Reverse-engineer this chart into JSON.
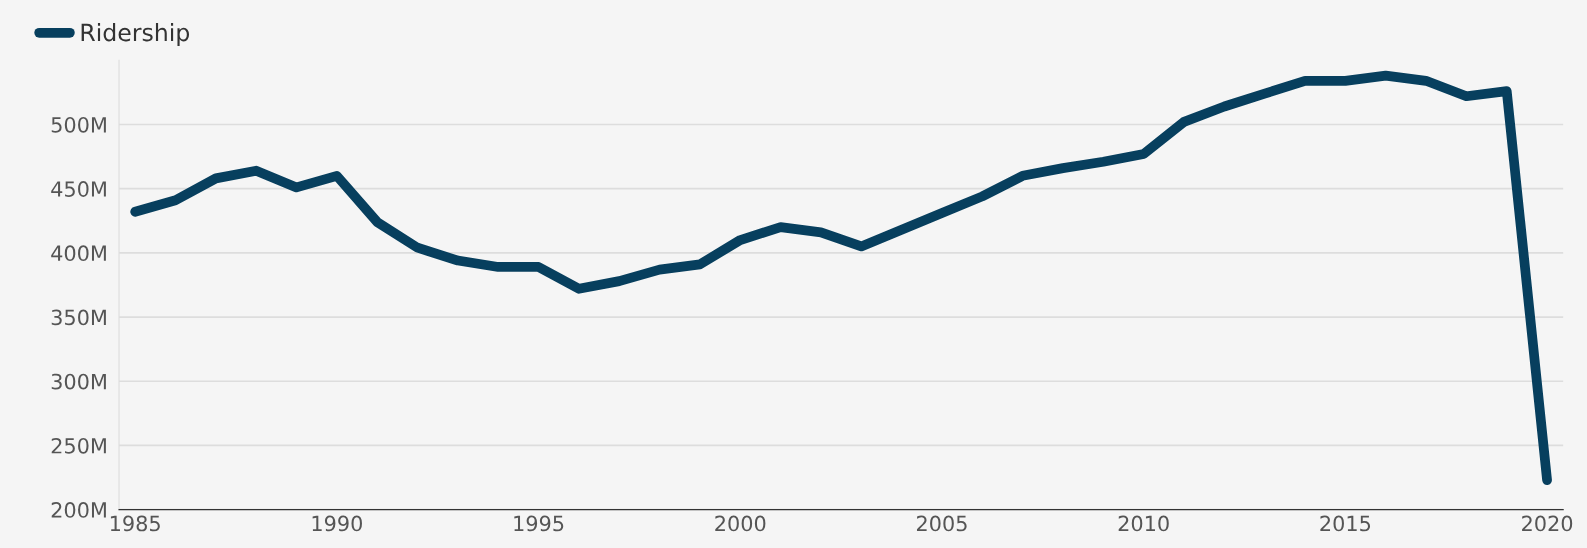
{
  "chart_data": {
    "type": "line",
    "x": [
      1985,
      1986,
      1987,
      1988,
      1989,
      1990,
      1991,
      1992,
      1993,
      1994,
      1995,
      1996,
      1997,
      1998,
      1999,
      2000,
      2001,
      2002,
      2003,
      2004,
      2005,
      2006,
      2007,
      2008,
      2009,
      2010,
      2011,
      2012,
      2013,
      2014,
      2015,
      2016,
      2017,
      2018,
      2019,
      2020
    ],
    "series": [
      {
        "name": "Ridership",
        "color": "#073f5e",
        "values": [
          432,
          441,
          458,
          464,
          451,
          460,
          424,
          404,
          394,
          389,
          389,
          372,
          378,
          387,
          391,
          410,
          420,
          416,
          405,
          418,
          431,
          444,
          460,
          466,
          471,
          477,
          502,
          514,
          524,
          534,
          534,
          538,
          534,
          522,
          526,
          223
        ]
      }
    ],
    "xlim": [
      1984.6,
      2020.4
    ],
    "xticks": [
      1985,
      1990,
      1995,
      2000,
      2005,
      2010,
      2015,
      2020
    ],
    "ylim": [
      200,
      550
    ],
    "yticks": [
      {
        "value": 200,
        "label": "200M"
      },
      {
        "value": 250,
        "label": "250M"
      },
      {
        "value": 300,
        "label": "300M"
      },
      {
        "value": 350,
        "label": "350M"
      },
      {
        "value": 400,
        "label": "400M"
      },
      {
        "value": 450,
        "label": "450M"
      },
      {
        "value": 500,
        "label": "500M"
      }
    ],
    "grid": "y",
    "legend": "top left",
    "marker": "none",
    "line_style": "solid"
  }
}
